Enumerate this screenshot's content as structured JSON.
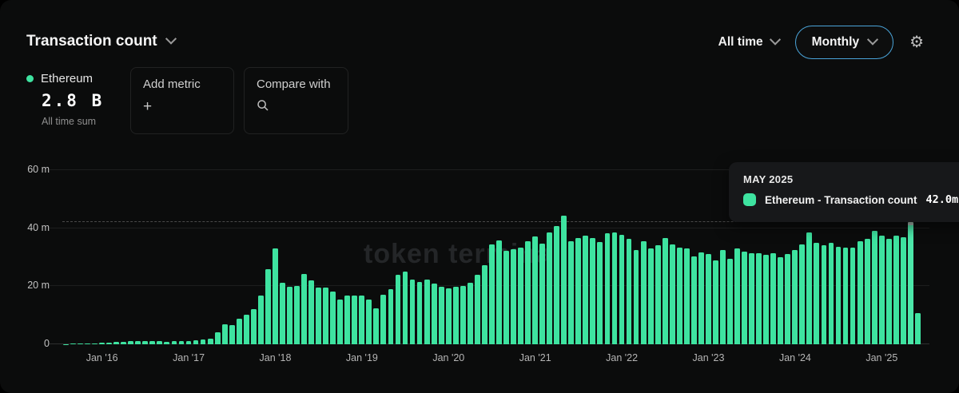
{
  "header": {
    "title": "Transaction count",
    "time_range": "All time",
    "granularity": "Monthly"
  },
  "metric": {
    "asset": "Ethereum",
    "total": "2.8 B",
    "total_caption": "All time sum"
  },
  "actions": {
    "add_metric_label": "Add metric",
    "add_metric_glyph": "+",
    "compare_with_label": "Compare with"
  },
  "tooltip": {
    "period": "MAY 2025",
    "series_label": "Ethereum - Transaction count",
    "value": "42.0m"
  },
  "watermark": "token terminal",
  "colors": {
    "bar_green": "#3ee3a0",
    "accent_blue": "#4aa4d9",
    "background": "#0b0c0c",
    "tooltip_bg": "#17181a"
  },
  "chart_data": {
    "type": "bar",
    "title": "Transaction count",
    "series_name": "Ethereum - Transaction count",
    "unit": "millions of transactions per month",
    "ylim": [
      0,
      60
    ],
    "grid": "horizontal",
    "legend_position": "none",
    "y_ticks": [
      {
        "v": 0,
        "label": "0"
      },
      {
        "v": 20,
        "label": "20 m"
      },
      {
        "v": 40,
        "label": "40 m"
      },
      {
        "v": 60,
        "label": "60 m"
      }
    ],
    "x_ticks": [
      {
        "month": "2016-01",
        "label": "Jan '16"
      },
      {
        "month": "2017-01",
        "label": "Jan '17"
      },
      {
        "month": "2018-01",
        "label": "Jan '18"
      },
      {
        "month": "2019-01",
        "label": "Jan '19"
      },
      {
        "month": "2020-01",
        "label": "Jan '20"
      },
      {
        "month": "2021-01",
        "label": "Jan '21"
      },
      {
        "month": "2022-01",
        "label": "Jan '22"
      },
      {
        "month": "2023-01",
        "label": "Jan '23"
      },
      {
        "month": "2024-01",
        "label": "Jan '24"
      },
      {
        "month": "2025-01",
        "label": "Jan '25"
      }
    ],
    "highlight_month": "2025-05",
    "highlight_value_label": "42.0m",
    "guide_value": 42.0,
    "months": [
      "2015-08",
      "2015-09",
      "2015-10",
      "2015-11",
      "2015-12",
      "2016-01",
      "2016-02",
      "2016-03",
      "2016-04",
      "2016-05",
      "2016-06",
      "2016-07",
      "2016-08",
      "2016-09",
      "2016-10",
      "2016-11",
      "2016-12",
      "2017-01",
      "2017-02",
      "2017-03",
      "2017-04",
      "2017-05",
      "2017-06",
      "2017-07",
      "2017-08",
      "2017-09",
      "2017-10",
      "2017-11",
      "2017-12",
      "2018-01",
      "2018-02",
      "2018-03",
      "2018-04",
      "2018-05",
      "2018-06",
      "2018-07",
      "2018-08",
      "2018-09",
      "2018-10",
      "2018-11",
      "2018-12",
      "2019-01",
      "2019-02",
      "2019-03",
      "2019-04",
      "2019-05",
      "2019-06",
      "2019-07",
      "2019-08",
      "2019-09",
      "2019-10",
      "2019-11",
      "2019-12",
      "2020-01",
      "2020-02",
      "2020-03",
      "2020-04",
      "2020-05",
      "2020-06",
      "2020-07",
      "2020-08",
      "2020-09",
      "2020-10",
      "2020-11",
      "2020-12",
      "2021-01",
      "2021-02",
      "2021-03",
      "2021-04",
      "2021-05",
      "2021-06",
      "2021-07",
      "2021-08",
      "2021-09",
      "2021-10",
      "2021-11",
      "2021-12",
      "2022-01",
      "2022-02",
      "2022-03",
      "2022-04",
      "2022-05",
      "2022-06",
      "2022-07",
      "2022-08",
      "2022-09",
      "2022-10",
      "2022-11",
      "2022-12",
      "2023-01",
      "2023-02",
      "2023-03",
      "2023-04",
      "2023-05",
      "2023-06",
      "2023-07",
      "2023-08",
      "2023-09",
      "2023-10",
      "2023-11",
      "2023-12",
      "2024-01",
      "2024-02",
      "2024-03",
      "2024-04",
      "2024-05",
      "2024-06",
      "2024-07",
      "2024-08",
      "2024-09",
      "2024-10",
      "2024-11",
      "2024-12",
      "2025-01",
      "2025-02",
      "2025-03",
      "2025-04",
      "2025-05",
      "2025-06"
    ],
    "values": [
      0.1,
      0.15,
      0.2,
      0.25,
      0.3,
      0.45,
      0.5,
      0.7,
      0.8,
      1.0,
      1.1,
      1.1,
      1.2,
      1.1,
      0.9,
      1.0,
      1.1,
      1.2,
      1.5,
      1.6,
      2.0,
      4.0,
      6.8,
      6.6,
      8.7,
      10.3,
      12.1,
      16.7,
      26.0,
      32.9,
      21.1,
      19.7,
      20.2,
      24.2,
      22.0,
      19.5,
      19.5,
      18.1,
      15.3,
      16.7,
      16.7,
      16.9,
      15.5,
      12.3,
      17.2,
      19.0,
      24.0,
      25.1,
      22.2,
      21.5,
      22.2,
      20.8,
      19.9,
      19.3,
      19.8,
      20.2,
      21.3,
      24.0,
      27.2,
      34.5,
      35.9,
      32.2,
      32.7,
      33.2,
      35.6,
      37.1,
      34.7,
      38.6,
      40.7,
      44.4,
      35.4,
      36.6,
      37.3,
      36.5,
      35.2,
      38.2,
      38.4,
      37.7,
      36.2,
      32.5,
      35.4,
      32.9,
      34.1,
      36.5,
      34.3,
      33.2,
      32.9,
      30.4,
      31.6,
      31.0,
      29.0,
      32.5,
      29.5,
      33.1,
      32.0,
      31.3,
      31.3,
      30.7,
      31.3,
      30.0,
      31.0,
      32.5,
      34.3,
      38.5,
      35.0,
      34.0,
      35.0,
      33.6,
      33.2,
      33.4,
      35.4,
      36.4,
      39.1,
      37.3,
      36.4,
      37.3,
      37.0,
      42.0,
      10.8
    ]
  }
}
